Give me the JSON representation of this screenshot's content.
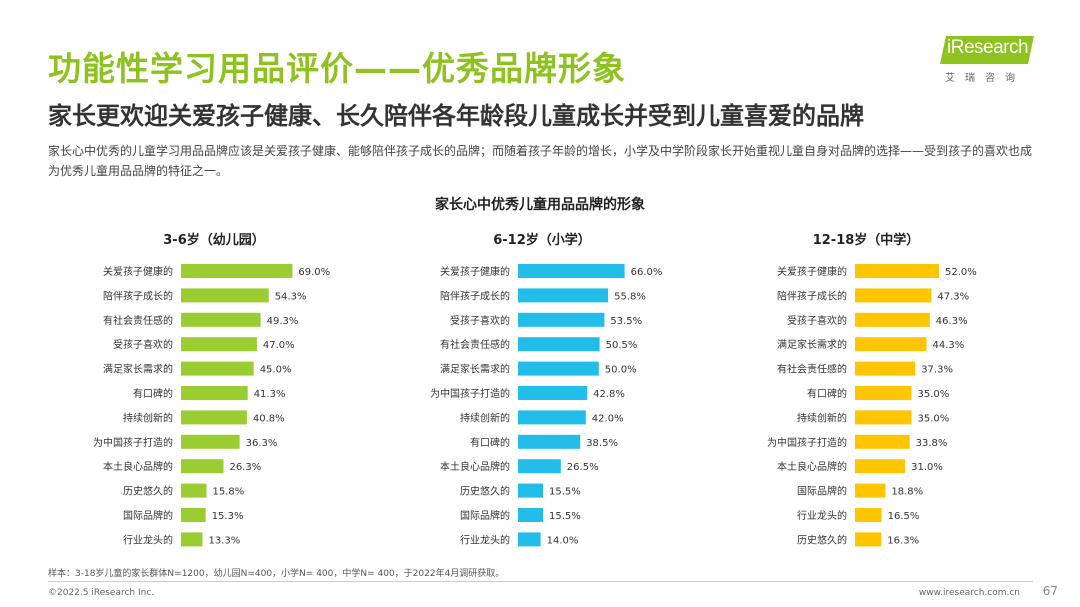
{
  "header": {
    "title": "功能性学习用品评价——优秀品牌形象",
    "subtitle": "家长更欢迎关爱孩子健康、长久陪伴各年龄段儿童成长并受到儿童喜爱的品牌",
    "description": "家长心中优秀的儿童学习用品品牌应该是关爱孩子健康、能够陪伴孩子成长的品牌；而随着孩子年龄的增长，小学及中学阶段家长开始重视儿童自身对品牌的选择——受到孩子的喜欢也成为优秀儿童用品品牌的特征之一。"
  },
  "logo": {
    "brand": "iResearch",
    "cn": "艾瑞咨询"
  },
  "chart_data": {
    "title": "家长心中优秀儿童用品品牌的形象",
    "type": "bar",
    "orientation": "horizontal",
    "value_format": "percent",
    "charts": [
      {
        "title": "3-6岁（幼儿园）",
        "color": "#9acd32",
        "categories": [
          "关爱孩子健康的",
          "陪伴孩子成长的",
          "有社会责任感的",
          "受孩子喜欢的",
          "满足家长需求的",
          "有口碑的",
          "持续创新的",
          "为中国孩子打造的",
          "本土良心品牌的",
          "历史悠久的",
          "国际品牌的",
          "行业龙头的"
        ],
        "values": [
          69.0,
          54.3,
          49.3,
          47.0,
          45.0,
          41.3,
          40.8,
          36.3,
          26.3,
          15.8,
          15.3,
          13.3
        ]
      },
      {
        "title": "6-12岁（小学）",
        "color": "#22bde8",
        "categories": [
          "关爱孩子健康的",
          "陪伴孩子成长的",
          "受孩子喜欢的",
          "有社会责任感的",
          "满足家长需求的",
          "为中国孩子打造的",
          "持续创新的",
          "有口碑的",
          "本土良心品牌的",
          "历史悠久的",
          "国际品牌的",
          "行业龙头的"
        ],
        "values": [
          66.0,
          55.8,
          53.5,
          50.5,
          50.0,
          42.8,
          42.0,
          38.5,
          26.5,
          15.5,
          15.5,
          14.0
        ]
      },
      {
        "title": "12-18岁（中学）",
        "color": "#ffc600",
        "categories": [
          "关爱孩子健康的",
          "陪伴孩子成长的",
          "受孩子喜欢的",
          "满足家长需求的",
          "有社会责任感的",
          "有口碑的",
          "持续创新的",
          "为中国孩子打造的",
          "本土良心品牌的",
          "国际品牌的",
          "行业龙头的",
          "历史悠久的"
        ],
        "values": [
          52.0,
          47.3,
          46.3,
          44.3,
          37.3,
          35.0,
          35.0,
          33.8,
          31.0,
          18.8,
          16.5,
          16.3
        ]
      }
    ]
  },
  "footer": {
    "note": "样本：3-18岁儿童的家长群体N=1200，幼儿园N=400，小学N= 400，中学N= 400，于2022年4月调研获取。",
    "copyright": "©2022.5 iResearch Inc.",
    "website": "www.iresearch.com.cn",
    "page": "67"
  }
}
